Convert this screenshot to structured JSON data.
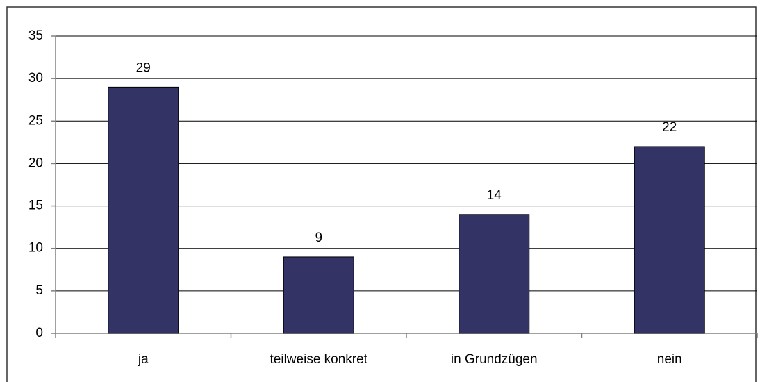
{
  "chart_data": {
    "type": "bar",
    "categories": [
      "ja",
      "teilweise konkret",
      "in Grundzügen",
      "nein"
    ],
    "values": [
      29,
      9,
      14,
      22
    ],
    "color": "#333366",
    "ylim": [
      0,
      35
    ],
    "yticks": [
      0,
      5,
      10,
      15,
      20,
      25,
      30,
      35
    ],
    "grid": true
  }
}
